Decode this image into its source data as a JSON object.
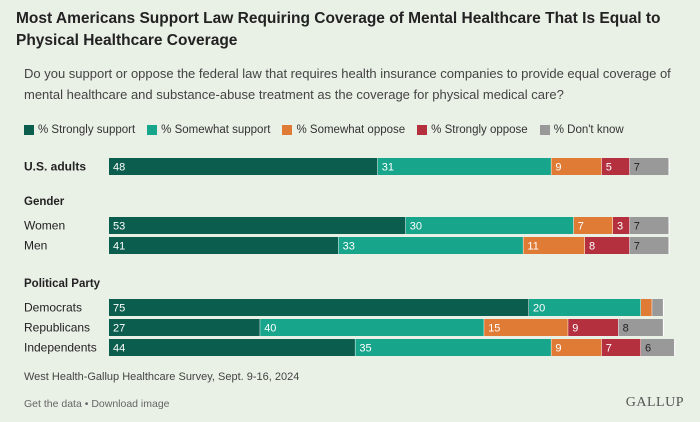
{
  "title": "Most Americans Support Law Requiring Coverage of Mental Healthcare That Is Equal to Physical Healthcare Coverage",
  "subtitle": "Do you support or oppose the federal law that requires health insurance companies to provide equal coverage of mental healthcare and substance-abuse treatment as the coverage for physical medical care?",
  "colors": {
    "strongly_support": "#0b5d4e",
    "somewhat_support": "#17a58c",
    "somewhat_oppose": "#e07b36",
    "strongly_oppose": "#b5303f",
    "dont_know": "#999999"
  },
  "legend": [
    {
      "label": "% Strongly support",
      "color": "#0b5d4e"
    },
    {
      "label": "% Somewhat support",
      "color": "#17a58c"
    },
    {
      "label": "% Somewhat oppose",
      "color": "#e07b36"
    },
    {
      "label": "% Strongly oppose",
      "color": "#b5303f"
    },
    {
      "label": "% Don't know",
      "color": "#999999"
    }
  ],
  "chart_data": {
    "type": "bar",
    "orientation": "horizontal",
    "stacked": true,
    "series_names": [
      "% Strongly support",
      "% Somewhat support",
      "% Somewhat oppose",
      "% Strongly oppose",
      "% Don't know"
    ],
    "groups": [
      {
        "label": "",
        "rows": [
          {
            "label": "U.S. adults",
            "bold": true,
            "values": [
              48,
              31,
              9,
              5,
              7
            ]
          }
        ]
      },
      {
        "label": "Gender",
        "rows": [
          {
            "label": "Women",
            "values": [
              53,
              30,
              7,
              3,
              7
            ]
          },
          {
            "label": "Men",
            "values": [
              41,
              33,
              11,
              8,
              7
            ]
          }
        ]
      },
      {
        "label": "Political Party",
        "rows": [
          {
            "label": "Democrats",
            "values": [
              75,
              20,
              2,
              0,
              2
            ],
            "hide_labels": [
              false,
              false,
              true,
              true,
              true
            ]
          },
          {
            "label": "Republicans",
            "values": [
              27,
              40,
              15,
              9,
              8
            ]
          },
          {
            "label": "Independents",
            "values": [
              44,
              35,
              9,
              7,
              6
            ]
          }
        ]
      }
    ]
  },
  "source": "West Health-Gallup Healthcare Survey, Sept. 9-16, 2024",
  "footer": {
    "get_data": "Get the data",
    "separator": " • ",
    "download": "Download image"
  },
  "brand": "GALLUP"
}
